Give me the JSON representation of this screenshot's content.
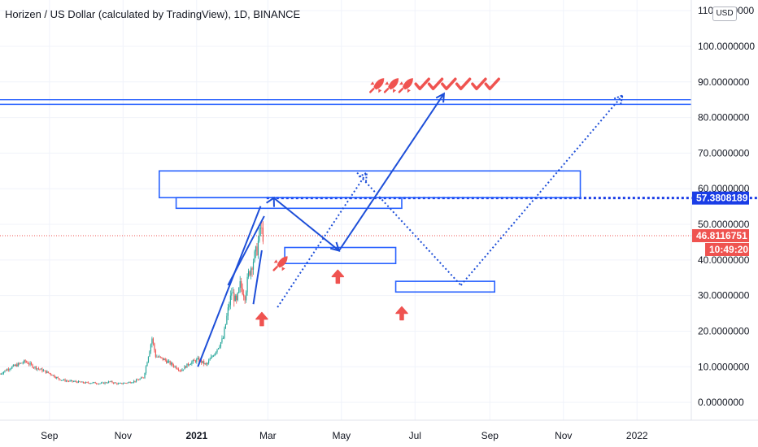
{
  "header": {
    "title": "Horizen / US Dollar (calculated by TradingView), 1D, BINANCE",
    "currency_badge": "USD"
  },
  "colors": {
    "up": "#26a69a",
    "down": "#ef5350",
    "drawing": "#1e4fd8",
    "box_stroke": "#2962ff",
    "price_line": "#ef5350",
    "level_tag": "#1a3de6",
    "price_tag": "#ef5350",
    "icon": "#ef5350",
    "axis_text": "#131722",
    "grid": "#f0f3fa"
  },
  "chart_data": {
    "type": "candlestick",
    "title": "Horizen / US Dollar (calculated by TradingView), 1D, BINANCE",
    "xlabel": "",
    "ylabel": "",
    "x_axis": "date",
    "x_range": [
      "2020-07-22",
      "2022-02-15"
    ],
    "ylim": [
      -5,
      113
    ],
    "grid": true,
    "y_ticks": [
      "0.0000000",
      "10.0000000",
      "20.0000000",
      "30.0000000",
      "40.0000000",
      "50.0000000",
      "60.0000000",
      "70.0000000",
      "80.0000000",
      "90.0000000",
      "100.0000000",
      "110.0000000"
    ],
    "x_ticks": [
      {
        "label": "Sep",
        "date": "2020-09-01",
        "strong": false
      },
      {
        "label": "Nov",
        "date": "2020-11-01",
        "strong": false
      },
      {
        "label": "2021",
        "date": "2021-01-01",
        "strong": true
      },
      {
        "label": "Mar",
        "date": "2021-03-01",
        "strong": false
      },
      {
        "label": "May",
        "date": "2021-05-01",
        "strong": false
      },
      {
        "label": "Jul",
        "date": "2021-07-01",
        "strong": false
      },
      {
        "label": "Sep",
        "date": "2021-09-01",
        "strong": false
      },
      {
        "label": "Nov",
        "date": "2021-11-01",
        "strong": false
      },
      {
        "label": "2022",
        "date": "2022-01-01",
        "strong": false
      }
    ],
    "price_series": [
      [
        "2020-07-22",
        8.0
      ],
      [
        "2020-07-29",
        9.5
      ],
      [
        "2020-08-05",
        10.5
      ],
      [
        "2020-08-12",
        11.5
      ],
      [
        "2020-08-19",
        10.0
      ],
      [
        "2020-08-26",
        9.0
      ],
      [
        "2020-09-02",
        8.0
      ],
      [
        "2020-09-09",
        6.5
      ],
      [
        "2020-09-16",
        6.0
      ],
      [
        "2020-09-23",
        5.8
      ],
      [
        "2020-09-30",
        5.5
      ],
      [
        "2020-10-07",
        5.5
      ],
      [
        "2020-10-14",
        5.3
      ],
      [
        "2020-10-21",
        5.8
      ],
      [
        "2020-10-28",
        5.2
      ],
      [
        "2020-11-04",
        5.5
      ],
      [
        "2020-11-11",
        6.0
      ],
      [
        "2020-11-18",
        7.0
      ],
      [
        "2020-11-25",
        18.0
      ],
      [
        "2020-11-28",
        13.0
      ],
      [
        "2020-12-05",
        12.0
      ],
      [
        "2020-12-12",
        10.5
      ],
      [
        "2020-12-19",
        9.0
      ],
      [
        "2020-12-26",
        11.0
      ],
      [
        "2021-01-02",
        12.0
      ],
      [
        "2021-01-09",
        10.5
      ],
      [
        "2021-01-16",
        14.0
      ],
      [
        "2021-01-23",
        18.0
      ],
      [
        "2021-01-27",
        26.0
      ],
      [
        "2021-01-30",
        31.0
      ],
      [
        "2021-02-03",
        28.0
      ],
      [
        "2021-02-06",
        33.0
      ],
      [
        "2021-02-10",
        30.0
      ],
      [
        "2021-02-13",
        36.0
      ],
      [
        "2021-02-17",
        40.0
      ],
      [
        "2021-02-20",
        43.0
      ],
      [
        "2021-02-23",
        49.0
      ],
      [
        "2021-02-25",
        46.81
      ]
    ],
    "horizontal_levels": [
      {
        "value": 85.0,
        "style": "solid"
      },
      {
        "value": 83.7,
        "style": "solid"
      },
      {
        "value": 57.3808189,
        "style": "dotted",
        "label": "57.3808189"
      },
      {
        "value": 46.8116751,
        "style": "dotted-thin",
        "label": "46.8116751"
      }
    ],
    "current_price": "46.8116751",
    "countdown": "10:49:20",
    "rectangles": [
      {
        "start": "2020-12-01",
        "end": "2021-11-15",
        "top": 65,
        "bottom": 57.5
      },
      {
        "start": "2020-12-15",
        "end": "2021-06-20",
        "top": 57.5,
        "bottom": 54.5
      },
      {
        "start": "2021-03-15",
        "end": "2021-06-15",
        "top": 43.5,
        "bottom": 39.0
      },
      {
        "start": "2021-06-15",
        "end": "2021-09-05",
        "top": 34.0,
        "bottom": 31.0
      }
    ],
    "solid_arrow_path": [
      [
        "2021-03-06",
        57.4
      ],
      [
        "2021-04-29",
        42.6
      ],
      [
        "2021-07-25",
        86.7
      ]
    ],
    "solid_arrow_heads": [
      {
        "at": "2021-03-06",
        "value": 57.4,
        "from_date": "2021-02-28",
        "from_value": 53.5
      },
      {
        "at": "2021-04-29",
        "value": 42.6,
        "from_date": "2021-04-20",
        "from_value": 45.5
      },
      {
        "at": "2021-07-25",
        "value": 86.7,
        "from_date": "2021-07-17",
        "from_value": 82.5
      }
    ],
    "channel_lines": [
      [
        [
          "2021-01-27",
          32.9
        ],
        [
          "2021-02-26",
          52.3
        ]
      ],
      [
        [
          "2021-01-02",
          10.0
        ],
        [
          "2021-02-23",
          55.1
        ]
      ],
      [
        [
          "2021-02-17",
          27.6
        ],
        [
          "2021-02-24",
          42.7
        ]
      ]
    ],
    "dotted_paths": [
      [
        [
          "2021-03-09",
          26.7
        ],
        [
          "2021-05-22",
          64.5
        ]
      ],
      [
        [
          "2021-05-14",
          64.5
        ],
        [
          "2021-08-08",
          32.9
        ]
      ],
      [
        [
          "2021-08-08",
          32.9
        ],
        [
          "2021-12-20",
          86.2
        ]
      ]
    ],
    "markers": [
      {
        "icon": "rocket",
        "date": "2021-05-31",
        "value": 89.2
      },
      {
        "icon": "rocket",
        "date": "2021-06-12",
        "value": 89.2
      },
      {
        "icon": "rocket",
        "date": "2021-06-24",
        "value": 89.2
      },
      {
        "icon": "check",
        "date": "2021-07-07",
        "value": 89.2
      },
      {
        "icon": "check",
        "date": "2021-07-18",
        "value": 89.2
      },
      {
        "icon": "check",
        "date": "2021-07-29",
        "value": 89.2
      },
      {
        "icon": "check",
        "date": "2021-08-10",
        "value": 89.2
      },
      {
        "icon": "check",
        "date": "2021-08-23",
        "value": 89.2
      },
      {
        "icon": "check",
        "date": "2021-09-03",
        "value": 89.2
      },
      {
        "icon": "rocket",
        "date": "2021-03-12",
        "value": 39.2
      },
      {
        "icon": "arrow-up",
        "date": "2021-02-24",
        "value": 23.4
      },
      {
        "icon": "arrow-up",
        "date": "2021-04-28",
        "value": 35.3
      },
      {
        "icon": "arrow-up",
        "date": "2021-06-20",
        "value": 25.0
      }
    ]
  }
}
